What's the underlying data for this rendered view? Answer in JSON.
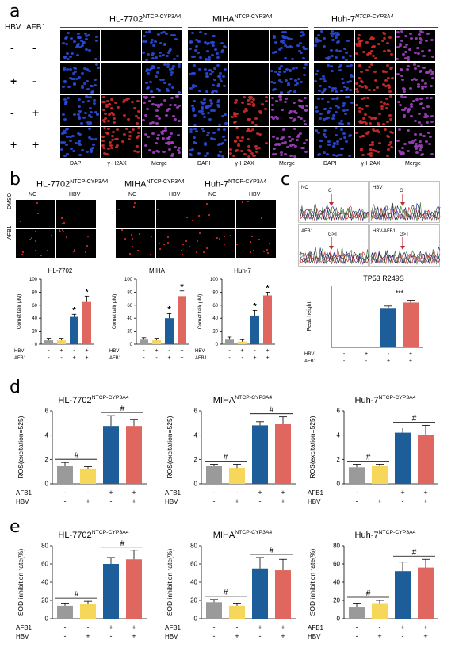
{
  "panel_letters": {
    "a": "a",
    "b": "b",
    "c": "c",
    "d": "d",
    "e": "e"
  },
  "panel_a": {
    "row_header_hbv": "HBV",
    "row_header_afb1": "AFB1",
    "rows": [
      {
        "hbv": "-",
        "afb1": "-"
      },
      {
        "hbv": "+",
        "afb1": "-"
      },
      {
        "hbv": "-",
        "afb1": "+"
      },
      {
        "hbv": "+",
        "afb1": "+"
      }
    ],
    "groups": [
      {
        "name": "HL-7702",
        "sup": "NTCP-CYP3A4"
      },
      {
        "name": "MIHA",
        "sup": "NTCP-CYP3A4"
      },
      {
        "name": "Huh-7",
        "sup": "NTCP-CYP3A4"
      }
    ],
    "channels": [
      "DAPI",
      "γ-H2AX",
      "Merge"
    ]
  },
  "panel_b": {
    "groups": [
      {
        "name": "HL-7702",
        "sup": "NTCP-CYP3A4"
      },
      {
        "name": "MIHA",
        "sup": "NTCP-CYP3A4"
      },
      {
        "name": "Huh-7",
        "sup": "NTCP-CYP3A4"
      }
    ],
    "cols": [
      "NC",
      "HBV"
    ],
    "rows": [
      "DMSO",
      "AFB1"
    ]
  },
  "panel_c": {
    "chrom_labels": [
      "NC",
      "HBV",
      "AFB1",
      "HBV-AFB1"
    ],
    "base_labels": [
      "G",
      "G",
      "G>T",
      "G>T"
    ]
  },
  "colors": {
    "grey": "#9a9a9a",
    "yellow": "#f7d75a",
    "blue": "#1d5d99",
    "red": "#e0675f",
    "cell_bg": "#000000",
    "dapi": "#2a4bd8",
    "h2ax": "#d02a2a",
    "merge": "#a040c0"
  },
  "chart_data": [
    {
      "id": "b1",
      "type": "bar",
      "title": "HL-7702",
      "ylabel": "Comet tail( μM)",
      "ylim": [
        0,
        100
      ],
      "yticks": [
        "0",
        "20",
        "40",
        "60",
        "80",
        "100"
      ],
      "values": [
        6,
        6,
        42,
        65
      ],
      "errors": [
        3,
        3,
        4,
        9
      ],
      "sig": [
        "",
        "",
        "*",
        "*"
      ],
      "rows": [
        {
          "label": "HBV",
          "marks": [
            "-",
            "+",
            "-",
            "+"
          ]
        },
        {
          "label": "AFB1",
          "marks": [
            "-",
            "-",
            "+",
            "+"
          ]
        }
      ]
    },
    {
      "id": "b2",
      "type": "bar",
      "title": "MIHA",
      "ylabel": "Comet tail( μM)",
      "ylim": [
        0,
        100
      ],
      "yticks": [
        "0",
        "20",
        "40",
        "60",
        "80",
        "100"
      ],
      "values": [
        7,
        6,
        40,
        74
      ],
      "errors": [
        3,
        3,
        7,
        8
      ],
      "sig": [
        "",
        "",
        "*",
        "*"
      ],
      "rows": [
        {
          "label": "HBV",
          "marks": [
            "-",
            "+",
            "-",
            "+"
          ]
        },
        {
          "label": "AFB1",
          "marks": [
            "-",
            "-",
            "+",
            "+"
          ]
        }
      ]
    },
    {
      "id": "b3",
      "type": "bar",
      "title": "Huh-7",
      "ylabel": "Comet tail( μM)",
      "ylim": [
        0,
        100
      ],
      "yticks": [
        "0",
        "20",
        "40",
        "60",
        "80",
        "100"
      ],
      "values": [
        7,
        4,
        44,
        75
      ],
      "errors": [
        4,
        3,
        8,
        5
      ],
      "sig": [
        "",
        "",
        "*",
        "*"
      ],
      "rows": [
        {
          "label": "HBV",
          "marks": [
            "-",
            "+",
            "-",
            "+"
          ]
        },
        {
          "label": "AFB1",
          "marks": [
            "-",
            "-",
            "+",
            "+"
          ]
        }
      ]
    },
    {
      "id": "c",
      "type": "bar",
      "title": "TP53 R249S",
      "ylabel": "Peak height",
      "ylim": [
        0,
        800
      ],
      "yticks": [],
      "values": [
        0,
        0,
        510,
        580
      ],
      "errors": [
        0,
        0,
        25,
        30
      ],
      "sig_pairs": [
        {
          "from": 2,
          "to": 3,
          "text": "***"
        }
      ],
      "rows": [
        {
          "label": "HBV",
          "marks": [
            "-",
            "+",
            "-",
            "+"
          ]
        },
        {
          "label": "AFB1",
          "marks": [
            "-",
            "-",
            "+",
            "+"
          ]
        }
      ]
    },
    {
      "id": "d1",
      "type": "bar",
      "title": "HL-7702",
      "sup": "NTCP-CYP3A4",
      "ylabel": "ROS(excitation=525)",
      "ylim": [
        0,
        6
      ],
      "yticks": [
        "0",
        "2",
        "4",
        "6"
      ],
      "values": [
        1.45,
        1.25,
        4.75,
        4.75
      ],
      "errors": [
        0.3,
        0.15,
        0.85,
        0.55
      ],
      "sig_pairs": [
        {
          "from": 0,
          "to": 1,
          "text": "#"
        },
        {
          "from": 2,
          "to": 3,
          "text": "#"
        }
      ],
      "rows": [
        {
          "label": "AFB1",
          "marks": [
            "-",
            "-",
            "+",
            "+"
          ]
        },
        {
          "label": "HBV",
          "marks": [
            "-",
            "+",
            "-",
            "+"
          ]
        }
      ]
    },
    {
      "id": "d2",
      "type": "bar",
      "title": "MIHA",
      "sup": "NTCP-CYP3A4",
      "ylabel": "ROS(excitation=525)",
      "ylim": [
        0,
        6
      ],
      "yticks": [
        "0",
        "2",
        "4",
        "6"
      ],
      "values": [
        1.5,
        1.3,
        4.8,
        4.9
      ],
      "errors": [
        0.1,
        0.3,
        0.3,
        0.6
      ],
      "sig_pairs": [
        {
          "from": 0,
          "to": 1,
          "text": "#"
        },
        {
          "from": 2,
          "to": 3,
          "text": "#"
        }
      ],
      "rows": [
        {
          "label": "AFB1",
          "marks": [
            "-",
            "-",
            "+",
            "+"
          ]
        },
        {
          "label": "HBV",
          "marks": [
            "-",
            "+",
            "-",
            "+"
          ]
        }
      ]
    },
    {
      "id": "d3",
      "type": "bar",
      "title": "Huh-7",
      "sup": "NTCP-CYP3A4",
      "ylabel": "ROS(excitation=525)",
      "ylim": [
        0,
        6
      ],
      "yticks": [
        "0",
        "2",
        "4",
        "6"
      ],
      "values": [
        1.35,
        1.5,
        4.2,
        4.0
      ],
      "errors": [
        0.25,
        0.1,
        0.4,
        0.8
      ],
      "sig_pairs": [
        {
          "from": 0,
          "to": 1,
          "text": "#"
        },
        {
          "from": 2,
          "to": 3,
          "text": "#"
        }
      ],
      "rows": [
        {
          "label": "AFB1",
          "marks": [
            "-",
            "-",
            "+",
            "+"
          ]
        },
        {
          "label": "HBV",
          "marks": [
            "-",
            "+",
            "-",
            "+"
          ]
        }
      ]
    },
    {
      "id": "e1",
      "type": "bar",
      "title": "HL-7702",
      "sup": "NTCP-CYP3A4",
      "ylabel": "SOD inhibition rate(%)",
      "ylim": [
        0,
        80
      ],
      "yticks": [
        "0",
        "20",
        "40",
        "60",
        "80"
      ],
      "values": [
        14,
        16,
        60,
        65
      ],
      "errors": [
        3,
        3,
        7,
        10
      ],
      "sig_pairs": [
        {
          "from": 0,
          "to": 1,
          "text": "#"
        },
        {
          "from": 2,
          "to": 3,
          "text": "#"
        }
      ],
      "rows": [
        {
          "label": "AFB1",
          "marks": [
            "-",
            "-",
            "+",
            "+"
          ]
        },
        {
          "label": "HBV",
          "marks": [
            "-",
            "+",
            "-",
            "+"
          ]
        }
      ]
    },
    {
      "id": "e2",
      "type": "bar",
      "title": "MIHA",
      "sup": "NTCP-CYP3A4",
      "ylabel": "SOD inhibition rate(%)",
      "ylim": [
        0,
        80
      ],
      "yticks": [
        "0",
        "20",
        "40",
        "60",
        "80"
      ],
      "values": [
        18,
        14,
        55,
        53
      ],
      "errors": [
        3,
        3,
        12,
        12
      ],
      "sig_pairs": [
        {
          "from": 0,
          "to": 1,
          "text": "#"
        },
        {
          "from": 2,
          "to": 3,
          "text": "#"
        }
      ],
      "rows": [
        {
          "label": "AFB1",
          "marks": [
            "-",
            "-",
            "+",
            "+"
          ]
        },
        {
          "label": "HBV",
          "marks": [
            "-",
            "+",
            "-",
            "+"
          ]
        }
      ]
    },
    {
      "id": "e3",
      "type": "bar",
      "title": "Huh-7",
      "sup": "NTCP-CYP3A4",
      "ylabel": "SOD inhibition rate(%)",
      "ylim": [
        0,
        80
      ],
      "yticks": [
        "0",
        "20",
        "40",
        "60",
        "80"
      ],
      "values": [
        13,
        17,
        52,
        56
      ],
      "errors": [
        4,
        3,
        10,
        9
      ],
      "sig_pairs": [
        {
          "from": 0,
          "to": 1,
          "text": "#"
        },
        {
          "from": 2,
          "to": 3,
          "text": "#"
        }
      ],
      "rows": [
        {
          "label": "AFB1",
          "marks": [
            "-",
            "-",
            "+",
            "+"
          ]
        },
        {
          "label": "HBV",
          "marks": [
            "-",
            "+",
            "-",
            "+"
          ]
        }
      ]
    }
  ]
}
